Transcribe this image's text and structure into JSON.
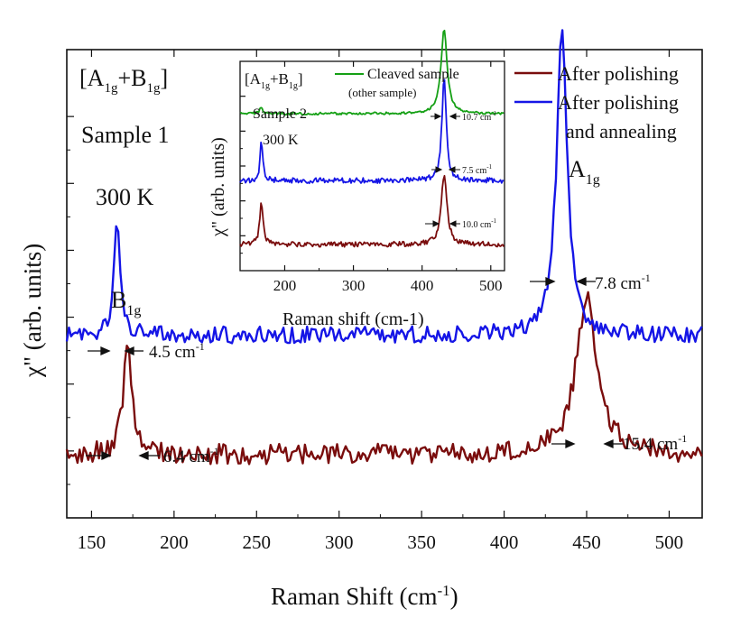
{
  "colors": {
    "polished": "#7a0d0d",
    "annealed": "#1515e6",
    "cleaved": "#15a015",
    "axis": "#111111"
  },
  "chart_data": [
    {
      "id": "main",
      "type": "line",
      "title": "",
      "xlabel": "Raman Shift (cm",
      "xlabel_sup": "-1",
      "xlabel_close": ")",
      "ylabel": "χ\" (arb. units)",
      "xlim": [
        135,
        520
      ],
      "ylim": [
        0,
        10
      ],
      "xticks": [
        150,
        200,
        250,
        300,
        350,
        400,
        450,
        500
      ],
      "y_tick_labels": false,
      "grid": false,
      "legend_position": "top-right",
      "annotations": {
        "symmetry": {
          "open": "[A",
          "s1": "1g",
          "plus": "+B",
          "s2": "1g",
          "close": "]"
        },
        "sample": "Sample 1",
        "temperature": "300 K",
        "b1g_label": {
          "base": "B",
          "sub": "1g"
        },
        "a1g_label": {
          "base": "A",
          "sub": "1g"
        },
        "widths": [
          {
            "series": "After polishing and annealing",
            "peak": 165,
            "text": "4.5 cm",
            "sup": "-1"
          },
          {
            "series": "After polishing",
            "peak": 172,
            "text": "6.4 cm",
            "sup": "-1"
          },
          {
            "series": "After polishing and annealing",
            "peak": 435,
            "text": "7.8 cm",
            "sup": "-1"
          },
          {
            "series": "After polishing",
            "peak": 450,
            "text": "15.4 cm",
            "sup": "-1"
          }
        ]
      },
      "series": [
        {
          "name": "After polishing",
          "legend": "After polishing",
          "color_key": "polished",
          "baseline": 1.35,
          "noise": 0.22,
          "peaks": [
            {
              "center": 172,
              "height": 2.35,
              "fwhm": 6.4
            },
            {
              "center": 450,
              "height": 3.35,
              "fwhm": 15.4
            }
          ]
        },
        {
          "name": "After polishing and annealing",
          "legend": [
            "After polishing",
            "and annealing"
          ],
          "color_key": "annealed",
          "baseline": 3.9,
          "noise": 0.18,
          "peaks": [
            {
              "center": 165.5,
              "height": 2.35,
              "fwhm": 4.5
            },
            {
              "center": 435,
              "height": 6.5,
              "fwhm": 7.8
            }
          ]
        }
      ]
    },
    {
      "id": "inset",
      "type": "line",
      "title": "",
      "xlabel": "Raman shift (cm-1)",
      "ylabel": "χ\" (arb. units)",
      "xlim": [
        135,
        520
      ],
      "ylim": [
        0,
        10
      ],
      "xticks": [
        200,
        300,
        400,
        500
      ],
      "y_tick_labels": false,
      "grid": false,
      "legend_position": "top",
      "annotations": {
        "symmetry": {
          "open": "[A",
          "s1": "1g",
          "plus": "+B",
          "s2": "1g",
          "close": "]"
        },
        "sample": "Sample 2",
        "temperature": "300 K",
        "widths": [
          {
            "series": "Cleaved sample",
            "text": "10.7 cm",
            "sup": "-1"
          },
          {
            "series": "After polishing and annealing",
            "text": "7.5 cm",
            "sup": "-1"
          },
          {
            "series": "After polishing",
            "text": "10.0 cm",
            "sup": "-1"
          }
        ]
      },
      "series": [
        {
          "name": "Cleaved sample",
          "legend": [
            "Cleaved sample",
            "(other sample)"
          ],
          "color_key": "cleaved",
          "baseline": 7.5,
          "noise": 0.06,
          "peaks": [
            {
              "center": 166,
              "height": 0.35,
              "fwhm": 5
            },
            {
              "center": 432,
              "height": 4.0,
              "fwhm": 10.7
            }
          ]
        },
        {
          "name": "After polishing and annealing",
          "color_key": "annealed",
          "baseline": 4.3,
          "noise": 0.13,
          "peaks": [
            {
              "center": 166,
              "height": 1.95,
              "fwhm": 4.5
            },
            {
              "center": 432,
              "height": 4.9,
              "fwhm": 7.5
            }
          ]
        },
        {
          "name": "After polishing",
          "color_key": "polished",
          "baseline": 1.25,
          "noise": 0.12,
          "peaks": [
            {
              "center": 166,
              "height": 1.95,
              "fwhm": 6
            },
            {
              "center": 432,
              "height": 3.3,
              "fwhm": 10.0
            }
          ]
        }
      ]
    }
  ]
}
